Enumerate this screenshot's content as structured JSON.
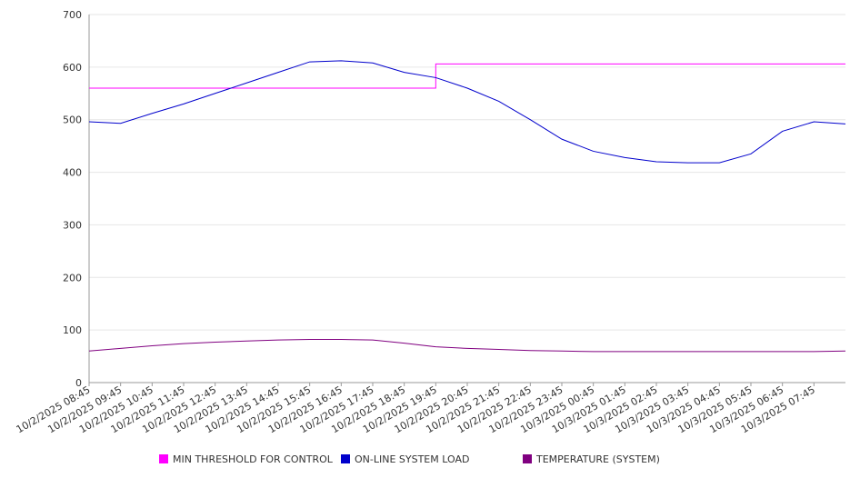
{
  "chart_data": {
    "type": "line",
    "title": "",
    "xlabel": "",
    "ylabel": "",
    "ylim": [
      0,
      700
    ],
    "yticks": [
      0,
      100,
      200,
      300,
      400,
      500,
      600,
      700
    ],
    "grid": true,
    "legend_position": "bottom",
    "x_tick_labels": [
      "10/2/2025 08:45",
      "10/2/2025 09:45",
      "10/2/2025 10:45",
      "10/2/2025 11:45",
      "10/2/2025 12:45",
      "10/2/2025 13:45",
      "10/2/2025 14:45",
      "10/2/2025 15:45",
      "10/2/2025 16:45",
      "10/2/2025 17:45",
      "10/2/2025 18:45",
      "10/2/2025 19:45",
      "10/2/2025 20:45",
      "10/2/2025 21:45",
      "10/2/2025 22:45",
      "10/2/2025 23:45",
      "10/3/2025 00:45",
      "10/3/2025 01:45",
      "10/3/2025 02:45",
      "10/3/2025 03:45",
      "10/3/2025 04:45",
      "10/3/2025 05:45",
      "10/3/2025 06:45",
      "10/3/2025 07:45"
    ],
    "x": [
      "10/2/2025 08:45",
      "10/2/2025 09:45",
      "10/2/2025 10:45",
      "10/2/2025 11:45",
      "10/2/2025 12:45",
      "10/2/2025 13:45",
      "10/2/2025 14:45",
      "10/2/2025 15:45",
      "10/2/2025 16:45",
      "10/2/2025 17:45",
      "10/2/2025 18:45",
      "10/2/2025 19:45",
      "10/2/2025 20:45",
      "10/2/2025 21:45",
      "10/2/2025 22:45",
      "10/2/2025 23:45",
      "10/3/2025 00:45",
      "10/3/2025 01:45",
      "10/3/2025 02:45",
      "10/3/2025 03:45",
      "10/3/2025 04:45",
      "10/3/2025 05:45",
      "10/3/2025 06:45",
      "10/3/2025 07:45",
      "10/3/2025 08:45"
    ],
    "series": [
      {
        "name": "MIN THRESHOLD FOR CONTROL",
        "color": "#ff00ff",
        "values": [
          560,
          560,
          560,
          560,
          560,
          560,
          560,
          560,
          560,
          560,
          560,
          606,
          606,
          606,
          606,
          606,
          606,
          606,
          606,
          606,
          606,
          606,
          606,
          606,
          606
        ]
      },
      {
        "name": "ON-LINE SYSTEM LOAD",
        "color": "#0000cc",
        "values": [
          496,
          493,
          512,
          530,
          550,
          570,
          590,
          610,
          612,
          608,
          590,
          580,
          560,
          535,
          500,
          463,
          440,
          428,
          420,
          418,
          418,
          435,
          478,
          496,
          492
        ]
      },
      {
        "name": "TEMPERATURE (SYSTEM)",
        "color": "#800080",
        "values": [
          60,
          65,
          70,
          74,
          77,
          79,
          81,
          82,
          82,
          81,
          75,
          68,
          65,
          63,
          61,
          60,
          59,
          59,
          59,
          59,
          59,
          59,
          59,
          59,
          60
        ]
      }
    ]
  }
}
